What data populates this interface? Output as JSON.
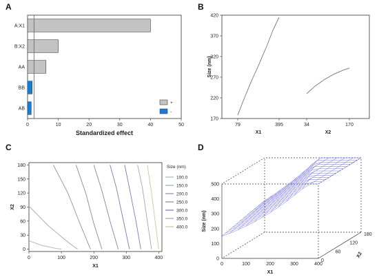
{
  "panels": {
    "a": "A",
    "b": "B",
    "c": "C",
    "d": "D"
  },
  "chart_data": [
    {
      "id": "A",
      "type": "bar",
      "orientation": "horizontal",
      "categories": [
        "A:X1",
        "B:X2",
        "AA",
        "BB",
        "AB"
      ],
      "values": [
        40,
        10,
        6,
        1.5,
        1.2
      ],
      "signs": [
        "+",
        "+",
        "+",
        "-",
        "-"
      ],
      "xlabel": "Standardized effect",
      "xlim": [
        0,
        50
      ],
      "xticks": [
        0,
        10,
        20,
        30,
        40,
        50
      ],
      "reference_line": 2.1,
      "legend": [
        {
          "label": "+",
          "color": "#c3c3c3"
        },
        {
          "label": "-",
          "color": "#1b7ad4"
        }
      ],
      "legend_position": "bottom-right",
      "colors": {
        "positive": "#c3c3c3",
        "negative": "#1b7ad4",
        "ref": "#6a5acd"
      }
    },
    {
      "id": "B",
      "type": "line",
      "ylabel": "Size (nm)",
      "ylim": [
        170,
        420
      ],
      "yticks": [
        170,
        220,
        270,
        320,
        370,
        420
      ],
      "segments": [
        {
          "xlabel": "X1",
          "xticks": [
            "79",
            "395"
          ],
          "x": [
            79,
            130,
            180,
            240,
            300,
            350,
            395
          ],
          "y": [
            178,
            220,
            258,
            300,
            345,
            385,
            415
          ]
        },
        {
          "xlabel": "X2",
          "xticks": [
            "34",
            "170"
          ],
          "x": [
            34,
            60,
            90,
            120,
            150,
            170
          ],
          "y": [
            230,
            248,
            264,
            277,
            287,
            292
          ]
        }
      ]
    },
    {
      "id": "C",
      "type": "contour",
      "xlabel": "X1",
      "ylabel": "X2",
      "xlim": [
        0,
        410
      ],
      "ylim": [
        -5,
        185
      ],
      "xticks": [
        0,
        100,
        200,
        300,
        400
      ],
      "yticks": [
        0,
        30,
        60,
        90,
        120,
        150,
        180
      ],
      "legend_title": "Size (nm)",
      "levels": [
        {
          "label": "100.0",
          "value": 100,
          "color": "#a8b4c0"
        },
        {
          "label": "150.0",
          "value": 150,
          "color": "#9aa8b6"
        },
        {
          "label": "200.0",
          "value": 200,
          "color": "#8f8fb0"
        },
        {
          "label": "250.0",
          "value": 250,
          "color": "#8a80a8"
        },
        {
          "label": "300.0",
          "value": 300,
          "color": "#7a7aa8"
        },
        {
          "label": "350.0",
          "value": 350,
          "color": "#a0a8a0"
        },
        {
          "label": "400.0",
          "value": 400,
          "color": "#c8c8a0"
        }
      ],
      "contour_lines": [
        {
          "x": [
            0,
            40,
            80,
            100
          ],
          "y": [
            18,
            8,
            2,
            0
          ]
        },
        {
          "x": [
            0,
            60,
            120,
            150
          ],
          "y": [
            92,
            50,
            15,
            0
          ]
        },
        {
          "x": [
            75,
            120,
            160,
            190
          ],
          "y": [
            180,
            120,
            50,
            0
          ]
        },
        {
          "x": [
            145,
            175,
            200,
            225
          ],
          "y": [
            180,
            120,
            55,
            0
          ]
        },
        {
          "x": [
            200,
            225,
            250,
            275
          ],
          "y": [
            180,
            125,
            60,
            0
          ]
        },
        {
          "x": [
            250,
            270,
            290,
            310
          ],
          "y": [
            180,
            130,
            65,
            0
          ]
        },
        {
          "x": [
            295,
            310,
            330,
            345
          ],
          "y": [
            180,
            130,
            60,
            0
          ]
        },
        {
          "x": [
            335,
            350,
            365,
            378
          ],
          "y": [
            180,
            130,
            60,
            0
          ]
        },
        {
          "x": [
            365,
            378,
            390,
            400
          ],
          "y": [
            180,
            120,
            55,
            0
          ]
        }
      ]
    },
    {
      "id": "D",
      "type": "surface",
      "xlabel": "X1",
      "ylabel": "X2",
      "zlabel": "Size (nm)",
      "xlim": [
        0,
        400
      ],
      "ylim": [
        0,
        180
      ],
      "zlim": [
        0,
        500
      ],
      "xticks": [
        0,
        100,
        200,
        300,
        400
      ],
      "yticks": [
        0,
        60,
        120,
        180
      ],
      "zticks": [
        0,
        100,
        200,
        300,
        400,
        500
      ],
      "surface_color": "#5b5bd6"
    }
  ]
}
